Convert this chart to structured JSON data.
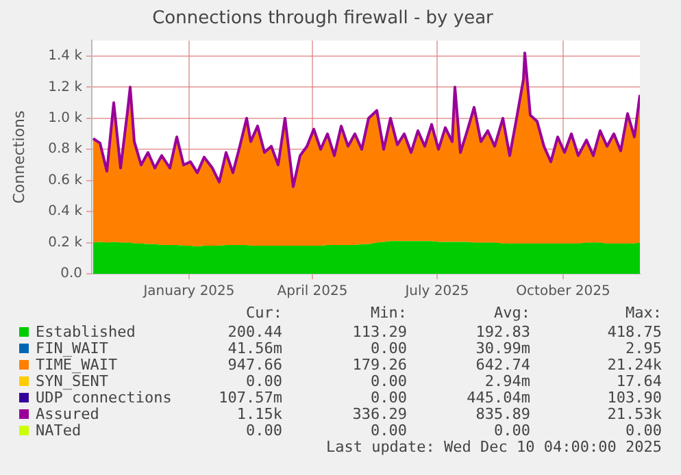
{
  "chart_data": {
    "type": "area",
    "title": "Connections through firewall - by year",
    "ylabel": "Connections",
    "stacked": true,
    "grid": true,
    "legend": "bottom",
    "marker": "none",
    "x": [
      "2024-11-06",
      "2024-11-11",
      "2024-11-16",
      "2024-11-21",
      "2024-11-26",
      "2024-12-01",
      "2024-12-03",
      "2024-12-06",
      "2024-12-11",
      "2024-12-16",
      "2024-12-21",
      "2024-12-26",
      "2025-01-01",
      "2025-01-06",
      "2025-01-11",
      "2025-01-16",
      "2025-01-21",
      "2025-01-26",
      "2025-02-01",
      "2025-02-06",
      "2025-02-11",
      "2025-02-16",
      "2025-02-21",
      "2025-02-26",
      "2025-03-01",
      "2025-03-06",
      "2025-03-11",
      "2025-03-16",
      "2025-03-21",
      "2025-03-26",
      "2025-04-01",
      "2025-04-06",
      "2025-04-11",
      "2025-04-16",
      "2025-04-21",
      "2025-04-26",
      "2025-05-01",
      "2025-05-06",
      "2025-05-11",
      "2025-05-16",
      "2025-05-21",
      "2025-05-26",
      "2025-06-01",
      "2025-06-06",
      "2025-06-11",
      "2025-06-16",
      "2025-06-21",
      "2025-06-26",
      "2025-07-01",
      "2025-07-06",
      "2025-07-11",
      "2025-07-16",
      "2025-07-21",
      "2025-07-26",
      "2025-07-28",
      "2025-08-01",
      "2025-08-06",
      "2025-08-11",
      "2025-08-16",
      "2025-08-21",
      "2025-08-26",
      "2025-09-01",
      "2025-09-06",
      "2025-09-11",
      "2025-09-16",
      "2025-09-17",
      "2025-09-21",
      "2025-09-26",
      "2025-10-01",
      "2025-10-06",
      "2025-10-11",
      "2025-10-16",
      "2025-10-21",
      "2025-10-26",
      "2025-11-01",
      "2025-11-06",
      "2025-11-11",
      "2025-11-16",
      "2025-11-21",
      "2025-11-26",
      "2025-12-01",
      "2025-12-06",
      "2025-12-10"
    ],
    "xlim": [
      "2024-11-05",
      "2025-12-10"
    ],
    "xticks": [
      {
        "value": "2025-01-15",
        "label": "January 2025"
      },
      {
        "value": "2025-04-15",
        "label": "April 2025"
      },
      {
        "value": "2025-07-15",
        "label": "July 2025"
      },
      {
        "value": "2025-10-15",
        "label": "October 2025"
      }
    ],
    "ylim": [
      0,
      1500
    ],
    "yticks": [
      {
        "value": 0,
        "label": "0.0"
      },
      {
        "value": 200,
        "label": "0.2 k"
      },
      {
        "value": 400,
        "label": "0.4 k"
      },
      {
        "value": 600,
        "label": "0.6 k"
      },
      {
        "value": 800,
        "label": "0.8 k"
      },
      {
        "value": 1000,
        "label": "1.0 k"
      },
      {
        "value": 1200,
        "label": "1.2 k"
      },
      {
        "value": 1400,
        "label": "1.4 k"
      }
    ],
    "series": [
      {
        "name": "Established",
        "color": "#00cc00",
        "values": [
          200,
          205,
          200,
          205,
          200,
          200,
          200,
          195,
          195,
          190,
          190,
          185,
          185,
          185,
          180,
          180,
          175,
          180,
          180,
          180,
          185,
          185,
          185,
          185,
          180,
          180,
          180,
          180,
          180,
          180,
          180,
          180,
          180,
          180,
          180,
          185,
          185,
          185,
          185,
          185,
          190,
          190,
          200,
          205,
          210,
          210,
          210,
          210,
          210,
          210,
          210,
          205,
          205,
          205,
          205,
          205,
          205,
          200,
          200,
          200,
          200,
          195,
          195,
          195,
          195,
          195,
          195,
          195,
          195,
          195,
          195,
          195,
          195,
          195,
          200,
          200,
          200,
          195,
          195,
          195,
          195,
          195,
          200
        ]
      },
      {
        "name": "FIN_WAIT",
        "color": "#0066b3",
        "values": [
          null,
          null,
          null,
          null,
          null,
          null,
          null,
          null,
          null,
          null,
          null,
          null,
          null,
          null,
          null,
          null,
          null,
          null,
          null,
          null,
          null,
          null,
          null,
          null,
          null,
          null,
          null,
          null,
          null,
          null,
          null,
          null,
          null,
          null,
          null,
          null,
          null,
          null,
          null,
          null,
          null,
          null,
          null,
          null,
          null,
          null,
          null,
          null,
          null,
          null,
          null,
          null,
          null,
          null,
          null,
          null,
          null,
          null,
          null,
          null,
          null,
          null,
          null,
          null,
          null,
          null,
          null,
          null,
          null,
          null,
          null,
          null,
          null,
          null,
          null,
          null,
          null,
          null,
          null,
          null,
          null,
          null,
          null
        ]
      },
      {
        "name": "TIME_WAIT",
        "color": "#ff8000",
        "values": [
          670,
          635,
          460,
          895,
          480,
          840,
          1000,
          655,
          505,
          590,
          490,
          575,
          495,
          695,
          520,
          540,
          475,
          570,
          500,
          410,
          595,
          465,
          635,
          815,
          670,
          770,
          600,
          640,
          520,
          820,
          380,
          580,
          640,
          750,
          620,
          715,
          575,
          765,
          635,
          715,
          610,
          810,
          850,
          595,
          790,
          620,
          690,
          570,
          710,
          610,
          750,
          595,
          735,
          645,
          995,
          575,
          715,
          870,
          650,
          720,
          620,
          805,
          565,
          805,
          1055,
          1225,
          825,
          785,
          625,
          525,
          685,
          585,
          705,
          565,
          660,
          560,
          720,
          625,
          705,
          595,
          835,
          685,
          950
        ]
      },
      {
        "name": "SYN_SENT",
        "color": "#ffcc00",
        "values": [
          null,
          null,
          null,
          null,
          null,
          null,
          null,
          null,
          null,
          null,
          null,
          null,
          null,
          null,
          null,
          null,
          null,
          null,
          null,
          null,
          null,
          null,
          null,
          null,
          null,
          null,
          null,
          null,
          null,
          null,
          null,
          null,
          null,
          null,
          null,
          null,
          null,
          null,
          null,
          null,
          null,
          null,
          null,
          null,
          null,
          null,
          null,
          null,
          null,
          null,
          null,
          null,
          null,
          null,
          null,
          null,
          null,
          null,
          null,
          null,
          null,
          null,
          null,
          null,
          null,
          null,
          null,
          null,
          null,
          null,
          null,
          null,
          null,
          null,
          null,
          null,
          null,
          null,
          null,
          null,
          null,
          null,
          null
        ]
      },
      {
        "name": "UDP connections",
        "color": "#330099",
        "values": [
          null,
          null,
          null,
          null,
          null,
          null,
          null,
          null,
          null,
          null,
          null,
          null,
          null,
          null,
          null,
          null,
          null,
          null,
          null,
          null,
          null,
          null,
          null,
          null,
          null,
          null,
          null,
          null,
          null,
          null,
          null,
          null,
          null,
          null,
          null,
          null,
          null,
          null,
          null,
          null,
          null,
          null,
          null,
          null,
          null,
          null,
          null,
          null,
          null,
          null,
          null,
          null,
          null,
          null,
          null,
          null,
          null,
          null,
          null,
          null,
          null,
          null,
          null,
          null,
          null,
          null,
          null,
          null,
          null,
          null,
          null,
          null,
          null,
          null,
          null,
          null,
          null,
          null,
          null,
          null,
          null,
          null,
          null
        ]
      },
      {
        "name": "Assured",
        "type": "line",
        "color": "#990099",
        "values": [
          870,
          840,
          660,
          1100,
          680,
          1040,
          1200,
          850,
          700,
          780,
          680,
          760,
          680,
          880,
          700,
          720,
          650,
          750,
          680,
          590,
          780,
          650,
          820,
          1000,
          850,
          950,
          780,
          820,
          700,
          1000,
          560,
          760,
          820,
          930,
          800,
          900,
          760,
          950,
          820,
          900,
          800,
          1000,
          1050,
          800,
          1000,
          830,
          900,
          780,
          920,
          820,
          960,
          800,
          940,
          850,
          1200,
          780,
          920,
          1070,
          850,
          920,
          820,
          1000,
          760,
          1000,
          1250,
          1420,
          1020,
          980,
          820,
          720,
          880,
          780,
          900,
          760,
          860,
          760,
          920,
          820,
          900,
          790,
          1030,
          880,
          1150
        ]
      },
      {
        "name": "NATed",
        "type": "line",
        "color": "#ccff00",
        "values": [
          null,
          null,
          null,
          null,
          null,
          null,
          null,
          null,
          null,
          null,
          null,
          null,
          null,
          null,
          null,
          null,
          null,
          null,
          null,
          null,
          null,
          null,
          null,
          null,
          null,
          null,
          null,
          null,
          null,
          null,
          null,
          null,
          null,
          null,
          null,
          null,
          null,
          null,
          null,
          null,
          null,
          null,
          null,
          null,
          null,
          null,
          null,
          null,
          null,
          null,
          null,
          null,
          null,
          null,
          null,
          null,
          null,
          null,
          null,
          null,
          null,
          null,
          null,
          null,
          null,
          null,
          null,
          null,
          null,
          null,
          null,
          null,
          null,
          null,
          null,
          null,
          null,
          null,
          null,
          null,
          null,
          null,
          null
        ]
      }
    ],
    "annotations": [
      "Cur:",
      "Min:",
      "Avg:",
      "Max:",
      "200.44",
      "113.29",
      "192.83",
      "418.75",
      "41.56m",
      "0.00",
      "30.99m",
      "2.95",
      "947.66",
      "179.26",
      "642.74",
      "21.24k",
      "0.00",
      "0.00",
      "2.94m",
      "17.64",
      "107.57m",
      "0.00",
      "445.04m",
      "103.90",
      "1.15k",
      "336.29",
      "835.89",
      "21.53k",
      "0.00",
      "0.00",
      "0.00",
      "0.00",
      "Last update: Wed Dec 10 04:00:00 2025"
    ]
  }
}
